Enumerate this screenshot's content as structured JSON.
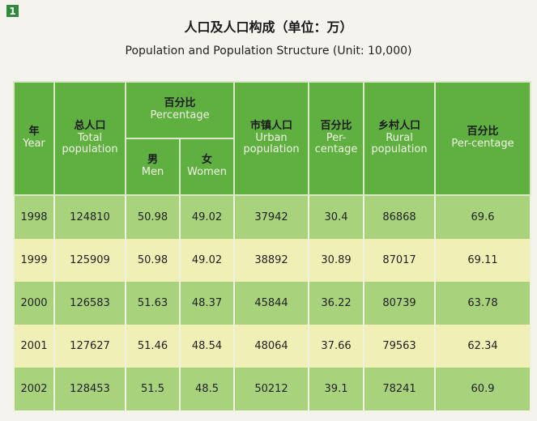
{
  "badge": "1",
  "title": {
    "cn": "人口及人口构成（单位：万）",
    "en": "Population and Population Structure (Unit: 10,000)"
  },
  "headers": {
    "year": {
      "cn": "年",
      "en": "Year"
    },
    "total": {
      "cn": "总人口",
      "en": "Total population"
    },
    "percentage_group": {
      "cn": "百分比",
      "en": "Percentage"
    },
    "men": {
      "cn": "男",
      "en": "Men"
    },
    "women": {
      "cn": "女",
      "en": "Women"
    },
    "urban": {
      "cn": "市镇人口",
      "en": "Urban population"
    },
    "urban_pct": {
      "cn": "百分比",
      "en": "Per-centage"
    },
    "rural": {
      "cn": "乡村人口",
      "en": "Rural population"
    },
    "rural_pct": {
      "cn": "百分比",
      "en": "Per-centage"
    }
  },
  "rows": [
    [
      "1998",
      "124810",
      "50.98",
      "49.02",
      "37942",
      "30.4",
      "86868",
      "69.6"
    ],
    [
      "1999",
      "125909",
      "50.98",
      "49.02",
      "38892",
      "30.89",
      "87017",
      "69.11"
    ],
    [
      "2000",
      "126583",
      "51.63",
      "48.37",
      "45844",
      "36.22",
      "80739",
      "63.78"
    ],
    [
      "2001",
      "127627",
      "51.46",
      "48.54",
      "48064",
      "37.66",
      "79563",
      "62.34"
    ],
    [
      "2002",
      "128453",
      "51.5",
      "48.5",
      "50212",
      "39.1",
      "78241",
      "60.9"
    ]
  ]
}
